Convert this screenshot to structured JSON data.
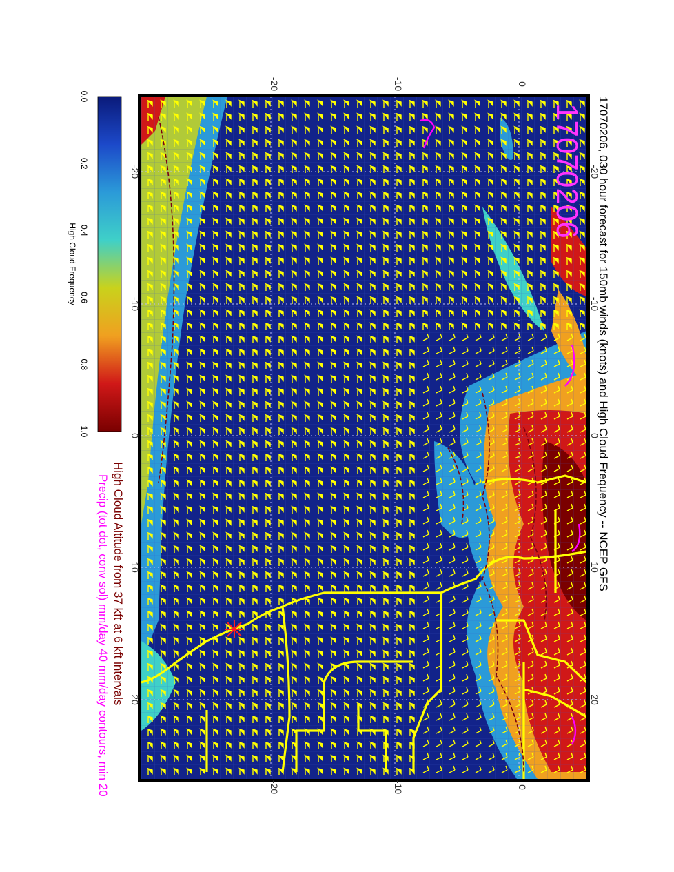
{
  "map": {
    "title": "17070206, 030 hour forecast for 150mb winds (knots) and High Cloud Frequency -- NCEP GFS",
    "stamp": "17070206",
    "caption_line1": "High Cloud Altitude from 37 kft at 6 kft intervals",
    "caption_line2": "Precip (tot dot, conv sol) mm/day 40 mm/day contours, min 20",
    "lon_ticks": [
      "-20",
      "-10",
      "0",
      "10",
      "20"
    ],
    "lat_ticks_top": [
      "-20",
      "-10",
      "0"
    ],
    "lat_ticks_bottom": [
      "-20",
      "-10",
      "0"
    ]
  },
  "colorbar": {
    "label": "High Cloud Frequency",
    "ticks": [
      "0.0",
      "0.2",
      "0.4",
      "0.6",
      "0.8",
      "1.0"
    ],
    "colors": [
      "#0a1a7a",
      "#1c49c9",
      "#2b9ad8",
      "#3fd0c8",
      "#c9d21c",
      "#f0a020",
      "#d01818",
      "#7a0000"
    ]
  },
  "colors": {
    "ocean_field": "#12238a",
    "wind_barbs": "#ffff00",
    "coastline": "#ffff00",
    "cloud_alt_contours": "#7a0010",
    "precip": "#ff00ff",
    "stamp": "#ff33ff",
    "marker": "#ff2020"
  }
}
